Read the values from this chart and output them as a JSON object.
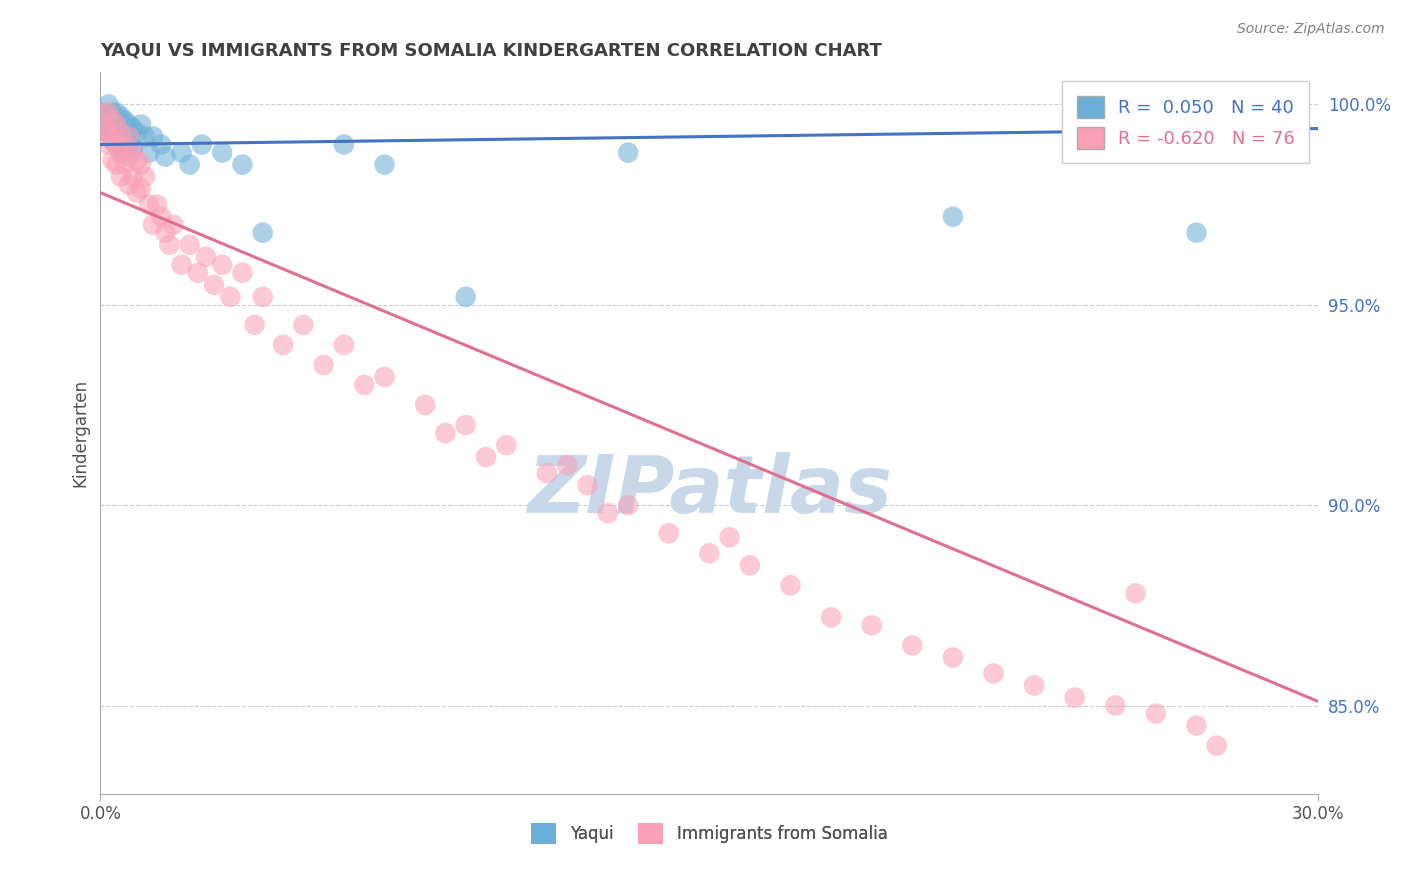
{
  "title": "YAQUI VS IMMIGRANTS FROM SOMALIA KINDERGARTEN CORRELATION CHART",
  "source": "Source: ZipAtlas.com",
  "ylabel": "Kindergarten",
  "xlim": [
    0.0,
    0.3
  ],
  "ylim": [
    0.828,
    1.008
  ],
  "yticks": [
    0.85,
    0.9,
    0.95,
    1.0
  ],
  "ytick_labels": [
    "85.0%",
    "90.0%",
    "95.0%",
    "100.0%"
  ],
  "xticks": [
    0.0,
    0.3
  ],
  "xtick_labels": [
    "0.0%",
    "30.0%"
  ],
  "legend1_label": "R =  0.050   N = 40",
  "legend2_label": "R = -0.620   N = 76",
  "legend_bottom1": "Yaqui",
  "legend_bottom2": "Immigrants from Somalia",
  "blue_color": "#6baed6",
  "pink_color": "#fa9fb5",
  "blue_line_color": "#4472c4",
  "pink_line_color": "#e07090",
  "title_color": "#404040",
  "source_color": "#808080",
  "watermark_color": "#c8d8e8",
  "blue_line_y0": 0.99,
  "blue_line_y1": 0.994,
  "pink_line_y0": 0.978,
  "pink_line_y1": 0.851,
  "blue_x": [
    0.001,
    0.001,
    0.002,
    0.002,
    0.002,
    0.003,
    0.003,
    0.003,
    0.004,
    0.004,
    0.004,
    0.005,
    0.005,
    0.005,
    0.006,
    0.006,
    0.006,
    0.007,
    0.007,
    0.008,
    0.008,
    0.009,
    0.01,
    0.011,
    0.012,
    0.013,
    0.015,
    0.016,
    0.02,
    0.022,
    0.025,
    0.03,
    0.035,
    0.04,
    0.06,
    0.07,
    0.09,
    0.13,
    0.21,
    0.27
  ],
  "blue_y": [
    0.998,
    0.995,
    1.0,
    0.997,
    0.993,
    0.998,
    0.995,
    0.991,
    0.998,
    0.994,
    0.99,
    0.997,
    0.993,
    0.988,
    0.996,
    0.992,
    0.988,
    0.995,
    0.99,
    0.994,
    0.989,
    0.993,
    0.995,
    0.992,
    0.988,
    0.992,
    0.99,
    0.987,
    0.988,
    0.985,
    0.99,
    0.988,
    0.985,
    0.968,
    0.99,
    0.985,
    0.952,
    0.988,
    0.972,
    0.968
  ],
  "pink_x": [
    0.001,
    0.001,
    0.002,
    0.002,
    0.002,
    0.003,
    0.003,
    0.003,
    0.004,
    0.004,
    0.004,
    0.005,
    0.005,
    0.005,
    0.006,
    0.006,
    0.007,
    0.007,
    0.007,
    0.008,
    0.008,
    0.009,
    0.009,
    0.01,
    0.01,
    0.011,
    0.012,
    0.013,
    0.014,
    0.015,
    0.016,
    0.017,
    0.018,
    0.02,
    0.022,
    0.024,
    0.026,
    0.028,
    0.03,
    0.032,
    0.035,
    0.038,
    0.04,
    0.045,
    0.05,
    0.055,
    0.06,
    0.065,
    0.07,
    0.08,
    0.085,
    0.09,
    0.095,
    0.1,
    0.11,
    0.115,
    0.12,
    0.125,
    0.13,
    0.14,
    0.15,
    0.155,
    0.16,
    0.17,
    0.18,
    0.19,
    0.2,
    0.21,
    0.22,
    0.23,
    0.24,
    0.25,
    0.255,
    0.26,
    0.27,
    0.275
  ],
  "pink_y": [
    0.998,
    0.994,
    0.998,
    0.993,
    0.99,
    0.996,
    0.991,
    0.986,
    0.995,
    0.99,
    0.985,
    0.993,
    0.988,
    0.982,
    0.99,
    0.985,
    0.992,
    0.987,
    0.98,
    0.988,
    0.982,
    0.986,
    0.978,
    0.985,
    0.979,
    0.982,
    0.975,
    0.97,
    0.975,
    0.972,
    0.968,
    0.965,
    0.97,
    0.96,
    0.965,
    0.958,
    0.962,
    0.955,
    0.96,
    0.952,
    0.958,
    0.945,
    0.952,
    0.94,
    0.945,
    0.935,
    0.94,
    0.93,
    0.932,
    0.925,
    0.918,
    0.92,
    0.912,
    0.915,
    0.908,
    0.91,
    0.905,
    0.898,
    0.9,
    0.893,
    0.888,
    0.892,
    0.885,
    0.88,
    0.872,
    0.87,
    0.865,
    0.862,
    0.858,
    0.855,
    0.852,
    0.85,
    0.878,
    0.848,
    0.845,
    0.84
  ]
}
